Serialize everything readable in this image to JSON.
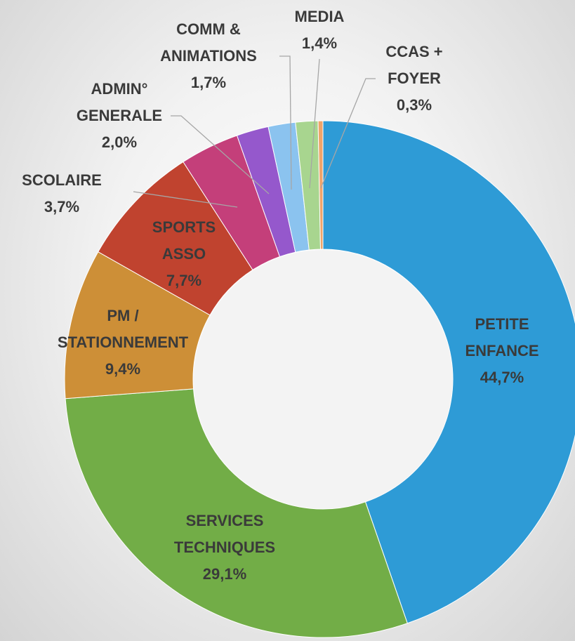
{
  "chart_data": {
    "type": "donut",
    "categories": [
      "PETITE\nENFANCE",
      "SERVICES\nTECHNIQUES",
      "PM /\nSTATIONNEMENT",
      "SPORTS\nASSO",
      "SCOLAIRE",
      "ADMIN°\nGENERALE",
      "COMM &\nANIMATIONS",
      "MEDIA",
      "CCAS +\nFOYER"
    ],
    "values": [
      44.7,
      29.1,
      9.4,
      7.7,
      3.7,
      2.0,
      1.7,
      1.4,
      0.3
    ],
    "value_labels": [
      "44,7%",
      "29,1%",
      "9,4%",
      "7,7%",
      "3,7%",
      "2,0%",
      "1,7%",
      "1,4%",
      "0,3%"
    ],
    "colors": [
      "#2e9bd6",
      "#72ad47",
      "#cd8f37",
      "#c0432f",
      "#c43f7a",
      "#9558cc",
      "#8bc3ef",
      "#a8d58f",
      "#f0a46a"
    ]
  }
}
